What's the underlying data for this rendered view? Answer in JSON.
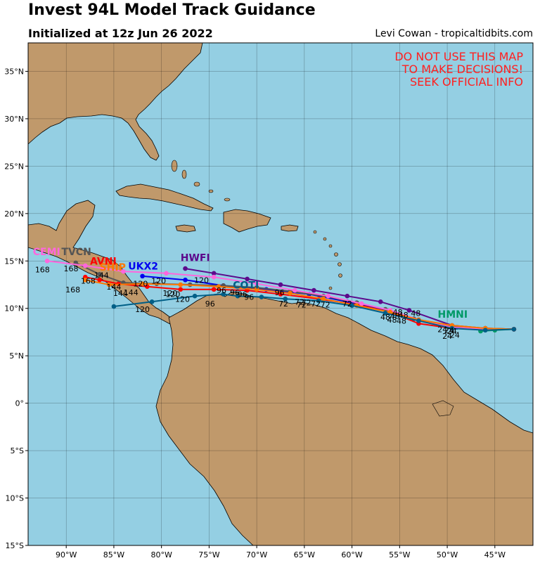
{
  "header": {
    "title": "Invest 94L Model Track Guidance",
    "subtitle": "Initialized at 12z Jun 26 2022",
    "credit": "Levi Cowan - tropicaltidbits.com"
  },
  "warning": [
    "DO NOT USE THIS MAP",
    "TO MAKE DECISIONS!",
    "SEEK OFFICIAL INFO"
  ],
  "axes": {
    "lon_ticks": [
      "90°W",
      "85°W",
      "80°W",
      "75°W",
      "70°W",
      "65°W",
      "60°W",
      "55°W",
      "50°W",
      "45°W"
    ],
    "lat_ticks": [
      "35°N",
      "30°N",
      "25°N",
      "20°N",
      "15°N",
      "10°N",
      "5°N",
      "0°",
      "5°S",
      "10°S",
      "15°S"
    ]
  },
  "colors": {
    "ocean": "#94cfe3",
    "land": "#c0996b",
    "warning": "#ff2020"
  },
  "chart_data": {
    "type": "map-tracks",
    "lon_range": [
      -94,
      -41
    ],
    "lat_range": [
      -15,
      38
    ],
    "grid": true,
    "tracks": [
      {
        "name": "HWFI",
        "color": "#5c0a8c",
        "points": [
          [
            -43,
            7.8
          ],
          [
            -46,
            7.9
          ],
          [
            -49.5,
            8.2
          ],
          [
            -54,
            9.8
          ],
          [
            -57,
            10.7
          ],
          [
            -60.5,
            11.3
          ],
          [
            -64,
            11.9
          ],
          [
            -67.5,
            12.5
          ],
          [
            -71,
            13.1
          ],
          [
            -74.5,
            13.7
          ],
          [
            -77.5,
            14.2
          ]
        ]
      },
      {
        "name": "UKX2",
        "color": "#0000ee",
        "points": [
          [
            -43,
            7.8
          ],
          [
            -46,
            7.8
          ],
          [
            -49,
            8.0
          ],
          [
            -53,
            8.8
          ],
          [
            -56.5,
            9.8
          ],
          [
            -60.5,
            10.7
          ],
          [
            -64.5,
            11.5
          ],
          [
            -69,
            12.0
          ],
          [
            -73.5,
            12.4
          ],
          [
            -77.5,
            13.0
          ],
          [
            -82,
            13.4
          ]
        ]
      },
      {
        "name": "HMNI",
        "color": "#009966",
        "points": [
          [
            -43,
            7.8
          ],
          [
            -45,
            7.7
          ],
          [
            -46.5,
            7.6
          ]
        ]
      },
      {
        "name": "AVNI",
        "color": "#ff0000",
        "points": [
          [
            -43,
            7.8
          ],
          [
            -46,
            7.8
          ],
          [
            -49.5,
            7.9
          ],
          [
            -53,
            8.4
          ],
          [
            -56,
            9.6
          ],
          [
            -59.5,
            10.4
          ],
          [
            -63.5,
            11.0
          ],
          [
            -67.5,
            11.5
          ],
          [
            -71,
            11.9
          ],
          [
            -74.5,
            12.0
          ],
          [
            -78,
            12.0
          ],
          [
            -81.5,
            12.3
          ],
          [
            -84.5,
            12.6
          ],
          [
            -86.5,
            13.0
          ],
          [
            -88,
            13.3
          ]
        ]
      },
      {
        "name": "TVCN",
        "color": "#555555",
        "points": [
          [
            -43,
            7.8
          ],
          [
            -46,
            7.9
          ],
          [
            -49.5,
            8.1
          ],
          [
            -53.5,
            8.9
          ],
          [
            -56.5,
            9.9
          ],
          [
            -59.5,
            10.6
          ],
          [
            -63,
            11.3
          ],
          [
            -66.5,
            11.8
          ],
          [
            -70,
            12.2
          ],
          [
            -73.5,
            12.4
          ],
          [
            -77,
            12.5
          ],
          [
            -80.5,
            12.6
          ],
          [
            -84,
            12.7
          ],
          [
            -86.5,
            13.6
          ],
          [
            -89,
            14.8
          ]
        ]
      },
      {
        "name": "CEMI",
        "color": "#ff66dd",
        "points": [
          [
            -43,
            7.8
          ],
          [
            -46,
            7.8
          ],
          [
            -49.5,
            8.0
          ],
          [
            -53,
            8.8
          ],
          [
            -56,
            9.8
          ],
          [
            -59,
            10.5
          ],
          [
            -62.5,
            11.3
          ],
          [
            -66,
            11.9
          ],
          [
            -70,
            12.6
          ],
          [
            -74.5,
            13.3
          ],
          [
            -79.5,
            13.7
          ],
          [
            -84,
            13.9
          ],
          [
            -88,
            14.5
          ],
          [
            -92,
            15.0
          ]
        ]
      },
      {
        "name": "SHIP",
        "color": "#ff7700",
        "points": [
          [
            -43,
            7.8
          ],
          [
            -46,
            7.9
          ],
          [
            -49.5,
            8.2
          ],
          [
            -53,
            8.8
          ],
          [
            -56,
            9.6
          ],
          [
            -59.5,
            10.3
          ],
          [
            -63,
            11.0
          ],
          [
            -66.5,
            11.6
          ],
          [
            -70,
            12.0
          ],
          [
            -74,
            12.3
          ],
          [
            -78,
            12.5
          ],
          [
            -82,
            12.6
          ],
          [
            -85.5,
            12.5
          ],
          [
            -88,
            13.0
          ]
        ]
      },
      {
        "name": "COTI",
        "color": "#005f87",
        "points": [
          [
            -43,
            7.8
          ],
          [
            -46,
            7.7
          ],
          [
            -49.5,
            7.9
          ],
          [
            -53,
            8.7
          ],
          [
            -56.5,
            9.5
          ],
          [
            -60,
            10.3
          ],
          [
            -63.5,
            10.8
          ],
          [
            -67,
            11.0
          ],
          [
            -69.5,
            11.2
          ],
          [
            -72,
            11.3
          ],
          [
            -73.5,
            11.5
          ],
          [
            -76.5,
            11.3
          ],
          [
            -81,
            10.7
          ],
          [
            -85,
            10.2
          ]
        ]
      }
    ],
    "model_labels": [
      {
        "text": "HWFI",
        "color": "#5c0a8c",
        "lon": -78,
        "lat": 15.0
      },
      {
        "text": "UKX2",
        "color": "#0000ee",
        "lon": -83.5,
        "lat": 14.1
      },
      {
        "text": "HMNI",
        "color": "#009966",
        "lon": -51,
        "lat": 9.0
      },
      {
        "text": "AVNI",
        "color": "#ff0000",
        "lon": -87.5,
        "lat": 14.6
      },
      {
        "text": "TVCN",
        "color": "#555555",
        "lon": -90.5,
        "lat": 15.6
      },
      {
        "text": "CEMI",
        "color": "#ff66dd",
        "lon": -93.5,
        "lat": 15.6
      },
      {
        "text": "COTI",
        "color": "#005f87",
        "lon": -72.5,
        "lat": 12.1
      },
      {
        "text": "SHIP",
        "color": "#ff7700",
        "lon": -86.5,
        "lat": 14.0
      }
    ],
    "hour_labels": [
      {
        "text": "168",
        "lon": -92.5,
        "lat": 13.8
      },
      {
        "text": "168",
        "lon": -89.5,
        "lat": 13.9
      },
      {
        "text": "168",
        "lon": -87.7,
        "lat": 12.6
      },
      {
        "text": "168",
        "lon": -89.3,
        "lat": 11.7
      },
      {
        "text": "144",
        "lon": -86.3,
        "lat": 13.2
      },
      {
        "text": "144",
        "lon": -85.0,
        "lat": 12.0
      },
      {
        "text": "144",
        "lon": -84.3,
        "lat": 11.3
      },
      {
        "text": "144",
        "lon": -83.2,
        "lat": 11.4
      },
      {
        "text": "120",
        "lon": -82.2,
        "lat": 12.3
      },
      {
        "text": "120",
        "lon": -80.3,
        "lat": 12.6
      },
      {
        "text": "120",
        "lon": -79.1,
        "lat": 11.3
      },
      {
        "text": "120",
        "lon": -78.8,
        "lat": 11.2
      },
      {
        "text": "120",
        "lon": -77.8,
        "lat": 10.7
      },
      {
        "text": "120",
        "lon": -82.0,
        "lat": 9.6
      },
      {
        "text": "120",
        "lon": -75.8,
        "lat": 12.7
      },
      {
        "text": "96",
        "lon": -73.7,
        "lat": 11.6
      },
      {
        "text": "96",
        "lon": -72.3,
        "lat": 11.4
      },
      {
        "text": "96",
        "lon": -71.5,
        "lat": 11.2
      },
      {
        "text": "96",
        "lon": -70.8,
        "lat": 10.9
      },
      {
        "text": "96",
        "lon": -74.9,
        "lat": 10.2
      },
      {
        "text": "96",
        "lon": -67.6,
        "lat": 11.4
      },
      {
        "text": "72",
        "lon": -67.2,
        "lat": 10.2
      },
      {
        "text": "72",
        "lon": -65.5,
        "lat": 10.4
      },
      {
        "text": "72",
        "lon": -64.8,
        "lat": 10.3
      },
      {
        "text": "72",
        "lon": -63.8,
        "lat": 10.2
      },
      {
        "text": "72",
        "lon": -62.8,
        "lat": 10.1
      },
      {
        "text": "72",
        "lon": -60.5,
        "lat": 10.2
      },
      {
        "text": "72",
        "lon": -65.3,
        "lat": 10.1
      },
      {
        "text": "48",
        "lon": -56.5,
        "lat": 8.8
      },
      {
        "text": "48",
        "lon": -55.5,
        "lat": 8.9
      },
      {
        "text": "48",
        "lon": -54.6,
        "lat": 9.0
      },
      {
        "text": "48",
        "lon": -55.8,
        "lat": 8.5
      },
      {
        "text": "48",
        "lon": -54.8,
        "lat": 8.4
      },
      {
        "text": "48",
        "lon": -53.3,
        "lat": 9.2
      },
      {
        "text": "48",
        "lon": -55.2,
        "lat": 9.3
      },
      {
        "text": "24",
        "lon": -50.5,
        "lat": 7.5
      },
      {
        "text": "24",
        "lon": -49.8,
        "lat": 7.4
      },
      {
        "text": "24",
        "lon": -49.5,
        "lat": 7.3
      },
      {
        "text": "24",
        "lon": -50.0,
        "lat": 6.8
      },
      {
        "text": "24",
        "lon": -49.2,
        "lat": 6.9
      }
    ]
  }
}
